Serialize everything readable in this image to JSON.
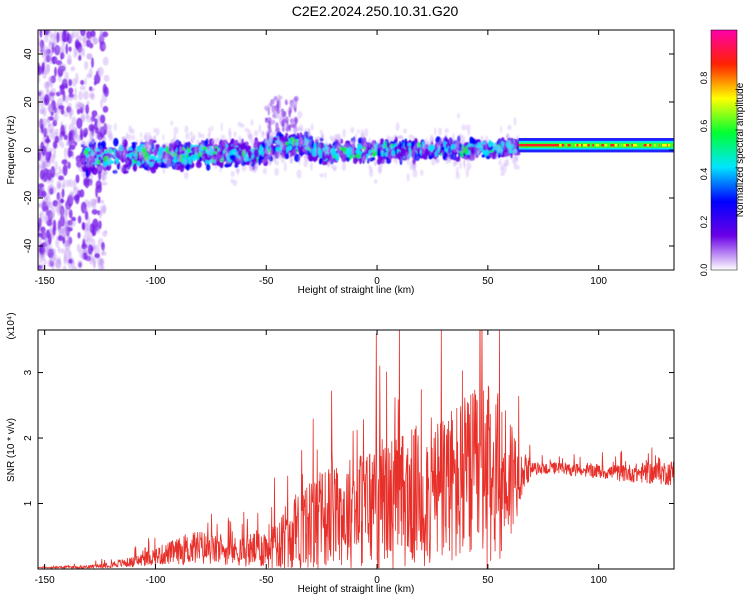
{
  "title": "C2E2.2024.250.10.31.G20",
  "colors": {
    "background": "#ffffff",
    "snr_line": "#e8302a",
    "axis": "#000000"
  },
  "chart_data": [
    {
      "type": "heatmap",
      "xlabel": "Height of straight line (km)",
      "ylabel": "Frequency (Hz)",
      "xlim": [
        -153,
        134
      ],
      "ylim": [
        -50,
        50
      ],
      "xticks": [
        -150,
        -100,
        -50,
        0,
        50,
        100
      ],
      "yticks": [
        -40,
        -20,
        0,
        20,
        40
      ],
      "colorbar": {
        "label": "Normalized spectral amplitude",
        "range": [
          0.0,
          1.0
        ],
        "ticks": [
          "0.0",
          "0.2",
          "0.4",
          "0.6",
          "0.8"
        ],
        "colormap": [
          "#ffffff",
          "#6a00e6",
          "#0000ff",
          "#00e5ff",
          "#00ff33",
          "#ffff00",
          "#ff2200",
          "#ff00aa"
        ]
      },
      "description_of_content": {
        "noise_region_x": [
          -153,
          -122
        ],
        "band_center_freq": 0,
        "band_start_x": -133,
        "narrow_band_start_x": 64,
        "narrow_band_freq": 2
      },
      "grid": false
    },
    {
      "type": "line",
      "xlabel": "Height of straight line (km)",
      "ylabel": "SNR (10 * v/v)",
      "y_scale_label": "(x10⁴)",
      "xlim": [
        -153,
        134
      ],
      "ylim": [
        0,
        3.65
      ],
      "xticks": [
        -150,
        -100,
        -50,
        0,
        50,
        100
      ],
      "yticks": [
        1,
        2,
        3
      ],
      "envelope": {
        "x": [
          -153,
          -130,
          -110,
          -100,
          -90,
          -80,
          -70,
          -60,
          -50,
          -40,
          -30,
          -20,
          -10,
          0,
          10,
          20,
          30,
          40,
          50,
          60,
          65,
          70,
          80,
          90,
          100,
          110,
          120,
          134
        ],
        "base": [
          0.02,
          0.03,
          0.1,
          0.18,
          0.25,
          0.3,
          0.25,
          0.25,
          0.3,
          0.45,
          0.6,
          0.75,
          0.8,
          0.9,
          0.95,
          1.0,
          1.1,
          1.2,
          1.25,
          1.3,
          1.45,
          1.52,
          1.53,
          1.5,
          1.48,
          1.45,
          1.45,
          1.45
        ],
        "amp": [
          0.01,
          0.03,
          0.1,
          0.18,
          0.25,
          0.35,
          0.25,
          0.3,
          0.4,
          0.7,
          0.9,
          1.0,
          1.1,
          1.3,
          1.3,
          1.4,
          1.5,
          1.7,
          1.8,
          1.4,
          0.5,
          0.12,
          0.12,
          0.12,
          0.14,
          0.16,
          0.2,
          0.25
        ]
      },
      "series": [
        {
          "color": "#e8302a"
        }
      ],
      "grid": false
    }
  ]
}
